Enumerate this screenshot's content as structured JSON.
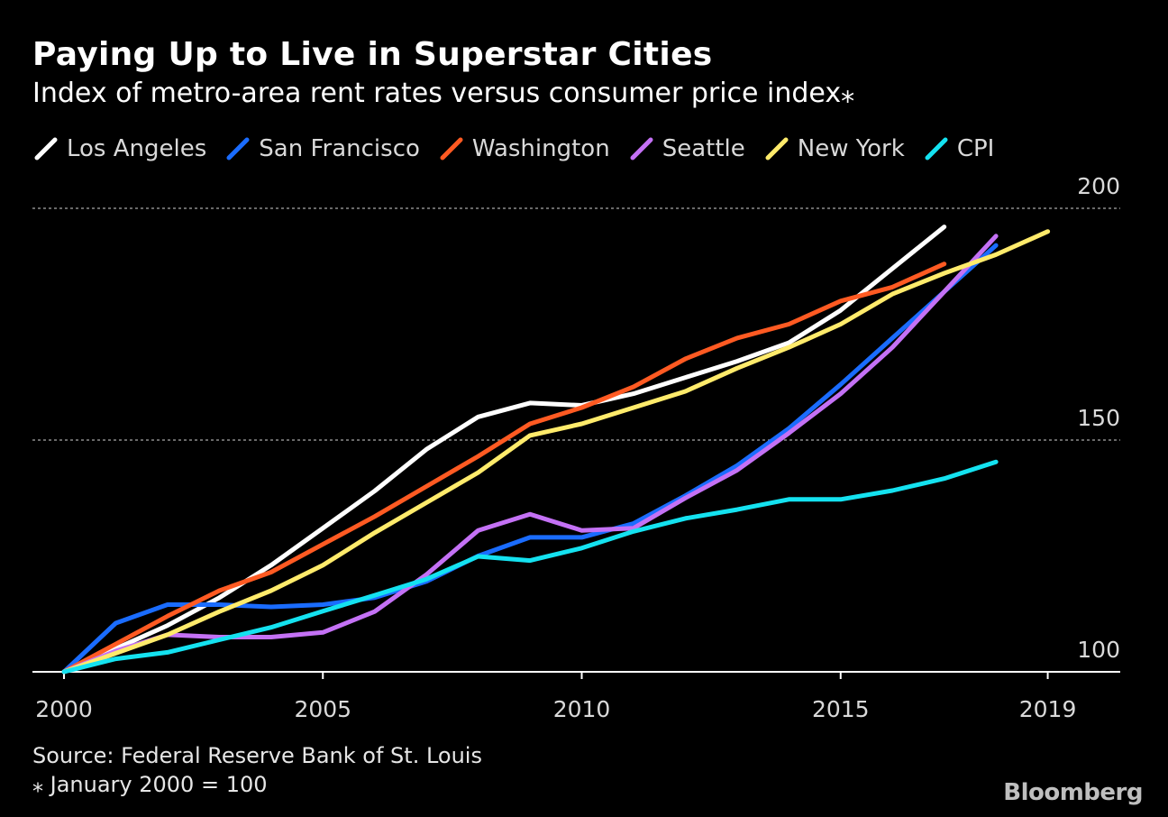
{
  "header": {
    "title": "Paying Up to Live in Superstar Cities",
    "subtitle": "Index of metro-area rent rates versus consumer price index⁎"
  },
  "footer": {
    "source": "Source: Federal Reserve Bank of St. Louis",
    "note": "⁎ January 2000 = 100",
    "logo": "Bloomberg"
  },
  "chart_data": {
    "type": "line",
    "title": "Paying Up to Live in Superstar Cities",
    "subtitle": "Index of metro-area rent rates versus consumer price index⁎",
    "xlabel": "",
    "ylabel": "",
    "xlim": [
      2000,
      2020.4
    ],
    "ylim": [
      100,
      200
    ],
    "x_ticks": [
      2000,
      2005,
      2010,
      2015,
      2019
    ],
    "y_ticks": [
      100,
      150,
      200
    ],
    "grid": "horizontal dotted at 150 and 200",
    "legend_position": "top",
    "series": [
      {
        "name": "Los Angeles",
        "color": "#ffffff",
        "x": [
          2000,
          2001,
          2002,
          2003,
          2004,
          2005,
          2006,
          2007,
          2008,
          2009,
          2010,
          2011,
          2012,
          2013,
          2014,
          2015,
          2016,
          2017
        ],
        "y": [
          100,
          105,
          110,
          116,
          123,
          131,
          139,
          148,
          155,
          158,
          157.5,
          160,
          163.5,
          167,
          171,
          178,
          187,
          196
        ]
      },
      {
        "name": "San Francisco",
        "color": "#1a6cff",
        "x": [
          2000,
          2001,
          2002,
          2003,
          2004,
          2005,
          2006,
          2007,
          2008,
          2009,
          2010,
          2011,
          2012,
          2013,
          2014,
          2015,
          2016,
          2017,
          2018
        ],
        "y": [
          100,
          110.5,
          114.5,
          114.5,
          114,
          114.5,
          116,
          119.5,
          125,
          129,
          129,
          132,
          138,
          144.5,
          152.5,
          162,
          172,
          182,
          192
        ]
      },
      {
        "name": "Washington",
        "color": "#ff5a22",
        "x": [
          2000,
          2001,
          2002,
          2003,
          2004,
          2005,
          2006,
          2007,
          2008,
          2009,
          2010,
          2011,
          2012,
          2013,
          2014,
          2015,
          2016,
          2017
        ],
        "y": [
          100,
          106,
          112,
          117.5,
          121.5,
          127.5,
          133.5,
          140,
          146.5,
          153.5,
          157,
          161.5,
          167.5,
          172,
          175,
          180,
          183,
          188
        ]
      },
      {
        "name": "Seattle",
        "color": "#c471f5",
        "x": [
          2000,
          2001,
          2002,
          2003,
          2004,
          2005,
          2006,
          2007,
          2008,
          2009,
          2010,
          2011,
          2012,
          2013,
          2014,
          2015,
          2016,
          2017,
          2018
        ],
        "y": [
          100,
          104.5,
          108,
          107.5,
          107.5,
          108.5,
          113,
          121,
          130.5,
          134,
          130.5,
          131,
          137.5,
          143.5,
          151.5,
          160,
          170,
          182,
          194
        ]
      },
      {
        "name": "New York",
        "color": "#ffeb6b",
        "x": [
          2000,
          2001,
          2002,
          2003,
          2004,
          2005,
          2006,
          2007,
          2008,
          2009,
          2010,
          2011,
          2012,
          2013,
          2014,
          2015,
          2016,
          2017,
          2018,
          2019
        ],
        "y": [
          100,
          104,
          108,
          113,
          117.5,
          123,
          130,
          136.5,
          143,
          151,
          153.5,
          157,
          160.5,
          165.5,
          170,
          175,
          181.5,
          186,
          190,
          195
        ]
      },
      {
        "name": "CPI",
        "color": "#14e2f0",
        "x": [
          2000,
          2001,
          2002,
          2003,
          2004,
          2005,
          2006,
          2007,
          2008,
          2009,
          2010,
          2011,
          2012,
          2013,
          2014,
          2015,
          2016,
          2017,
          2018
        ],
        "y": [
          100,
          102.8,
          104.2,
          106.9,
          109.6,
          113.1,
          116.5,
          120,
          124.9,
          124,
          126.7,
          130.3,
          133.1,
          135,
          137.2,
          137.2,
          139.1,
          141.7,
          145.3
        ]
      }
    ]
  }
}
